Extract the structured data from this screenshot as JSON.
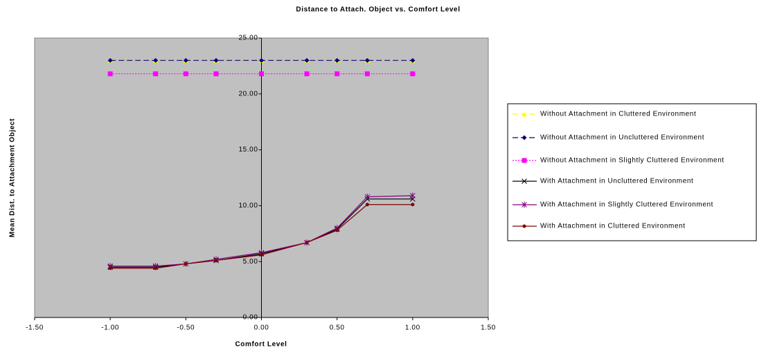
{
  "chart_data": {
    "type": "line",
    "title": "Distance to Attach. Object vs. Comfort Level",
    "x_label": "Comfort Level",
    "y_label": "Mean Dist. to Attachment Object",
    "x": [
      -1.0,
      -0.7,
      -0.5,
      -0.3,
      0.0,
      0.3,
      0.5,
      0.7,
      1.0
    ],
    "xlim": [
      -1.5,
      1.5
    ],
    "xticks": [
      {
        "value": -1.5,
        "label": "-1.50"
      },
      {
        "value": -1.0,
        "label": "-1.00"
      },
      {
        "value": -0.5,
        "label": "-0.50"
      },
      {
        "value": 0,
        "label": "0.00"
      },
      {
        "value": 0.5,
        "label": "0.50"
      },
      {
        "value": 1.0,
        "label": "1.00"
      },
      {
        "value": 1.5,
        "label": "1.50"
      }
    ],
    "ylim": [
      0,
      25
    ],
    "yticks": [
      {
        "value": 0,
        "label": "0.00"
      },
      {
        "value": 5,
        "label": "5.00"
      },
      {
        "value": 10,
        "label": "10.00"
      },
      {
        "value": 15,
        "label": "15.00"
      },
      {
        "value": 20,
        "label": "20.00"
      },
      {
        "value": 25,
        "label": "25.00"
      }
    ],
    "plot_background": "#c0c0c0",
    "series": [
      {
        "name": "Without Attachment in Cluttered Environment",
        "color": "#ffff00",
        "marker": "triangle",
        "linestyle": "dashed",
        "values": [
          23,
          23,
          23,
          23,
          23,
          23,
          23,
          23,
          23
        ]
      },
      {
        "name": "Without Attachment in Uncluttered Environment",
        "color": "#000080",
        "marker": "diamond",
        "linestyle": "dashed",
        "values": [
          23,
          23,
          23,
          23,
          23,
          23,
          23,
          23,
          23
        ]
      },
      {
        "name": "Without Attachment in Slightly Cluttered Environment",
        "color": "#ff00ff",
        "marker": "square",
        "linestyle": "dotted",
        "values": [
          21.8,
          21.8,
          21.8,
          21.8,
          21.8,
          21.8,
          21.8,
          21.8,
          21.8
        ]
      },
      {
        "name": "With Attachment in Uncluttered Environment",
        "color": "#000000",
        "marker": "x",
        "linestyle": "solid",
        "values": [
          4.5,
          4.5,
          4.8,
          5.1,
          5.7,
          6.7,
          7.9,
          10.6,
          10.6
        ]
      },
      {
        "name": "With Attachment in Slightly Cluttered Environment",
        "color": "#800080",
        "marker": "star",
        "linestyle": "solid",
        "values": [
          4.6,
          4.6,
          4.8,
          5.2,
          5.8,
          6.7,
          8.0,
          10.8,
          10.9
        ]
      },
      {
        "name": "With Attachment in Cluttered Environment",
        "color": "#800000",
        "marker": "circle",
        "linestyle": "solid",
        "values": [
          4.4,
          4.4,
          4.8,
          5.1,
          5.6,
          6.7,
          7.8,
          10.1,
          10.1
        ]
      }
    ]
  }
}
